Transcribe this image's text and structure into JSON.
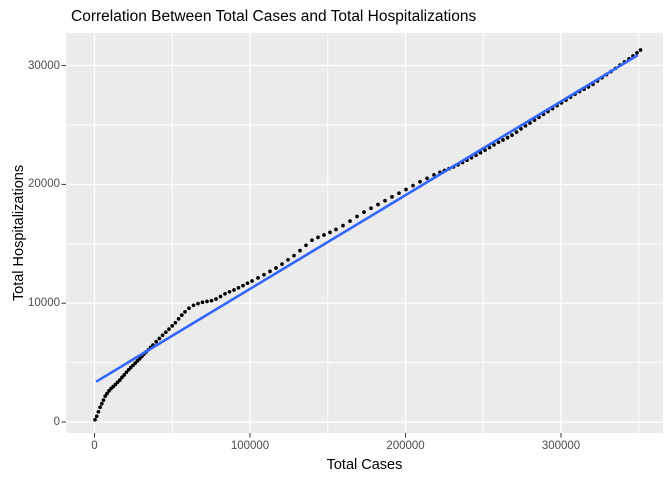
{
  "chart_data": {
    "type": "scatter",
    "title": "Correlation Between Total Cases and Total Hospitalizations",
    "xlabel": "Total Cases",
    "ylabel": "Total Hospitalizations",
    "grid": true,
    "legend_position": "none",
    "x_axis": {
      "ticks": [
        0,
        100000,
        200000,
        300000
      ],
      "minor_ticks": [
        50000,
        150000,
        250000,
        350000
      ],
      "range": [
        -18000,
        365500
      ]
    },
    "y_axis": {
      "ticks": [
        0,
        10000,
        20000,
        30000
      ],
      "minor_ticks": [
        5000,
        15000,
        25000
      ],
      "range": [
        -950,
        32750
      ]
    },
    "trend": {
      "type": "linear",
      "color": "#3366FF",
      "start": [
        1000,
        3390
      ],
      "end": [
        349500,
        30890
      ]
    },
    "colors": {
      "panel": "#EBEBEB",
      "grid_major": "#FFFFFF",
      "grid_minor": "#FFFFFF",
      "point": "#000000",
      "axis_text": "#4D4D4D",
      "tick_mark": "#333333",
      "title_text": "#000000"
    },
    "points": [
      [
        300,
        190
      ],
      [
        1400,
        480
      ],
      [
        2500,
        860
      ],
      [
        3590,
        1240
      ],
      [
        4680,
        1540
      ],
      [
        5780,
        1840
      ],
      [
        6870,
        2180
      ],
      [
        8030,
        2390
      ],
      [
        9310,
        2620
      ],
      [
        10600,
        2810
      ],
      [
        12020,
        2980
      ],
      [
        13430,
        3160
      ],
      [
        14850,
        3340
      ],
      [
        16260,
        3530
      ],
      [
        17680,
        3750
      ],
      [
        19090,
        3960
      ],
      [
        20510,
        4180
      ],
      [
        21920,
        4390
      ],
      [
        23340,
        4590
      ],
      [
        24750,
        4770
      ],
      [
        26170,
        4960
      ],
      [
        27580,
        5140
      ],
      [
        29000,
        5310
      ],
      [
        30410,
        5510
      ],
      [
        31830,
        5720
      ],
      [
        33240,
        5900
      ],
      [
        34660,
        6080
      ],
      [
        36070,
        6270
      ],
      [
        37610,
        6470
      ],
      [
        39670,
        6760
      ],
      [
        41730,
        7030
      ],
      [
        43790,
        7310
      ],
      [
        45850,
        7560
      ],
      [
        47900,
        7820
      ],
      [
        49960,
        8090
      ],
      [
        52020,
        8350
      ],
      [
        54080,
        8680
      ],
      [
        56140,
        9000
      ],
      [
        58190,
        9280
      ],
      [
        60770,
        9580
      ],
      [
        63660,
        9820
      ],
      [
        66550,
        9970
      ],
      [
        69450,
        10080
      ],
      [
        72340,
        10150
      ],
      [
        75240,
        10210
      ],
      [
        78130,
        10350
      ],
      [
        81020,
        10560
      ],
      [
        83920,
        10790
      ],
      [
        86810,
        10960
      ],
      [
        89710,
        11110
      ],
      [
        92600,
        11300
      ],
      [
        95490,
        11480
      ],
      [
        98390,
        11680
      ],
      [
        101280,
        11870
      ],
      [
        105140,
        12130
      ],
      [
        109000,
        12400
      ],
      [
        112860,
        12680
      ],
      [
        116720,
        12960
      ],
      [
        120570,
        13290
      ],
      [
        124430,
        13650
      ],
      [
        128290,
        14010
      ],
      [
        132150,
        14430
      ],
      [
        136010,
        14870
      ],
      [
        139870,
        15300
      ],
      [
        143720,
        15540
      ],
      [
        147580,
        15740
      ],
      [
        151440,
        15960
      ],
      [
        155300,
        16200
      ],
      [
        159800,
        16530
      ],
      [
        164310,
        16910
      ],
      [
        168810,
        17300
      ],
      [
        173320,
        17670
      ],
      [
        177820,
        18000
      ],
      [
        182320,
        18310
      ],
      [
        186820,
        18630
      ],
      [
        191320,
        18950
      ],
      [
        195820,
        19260
      ],
      [
        200330,
        19570
      ],
      [
        204830,
        19900
      ],
      [
        209330,
        20220
      ],
      [
        213830,
        20510
      ],
      [
        218330,
        20800
      ],
      [
        222190,
        21010
      ],
      [
        225090,
        21170
      ],
      [
        227980,
        21320
      ],
      [
        230870,
        21470
      ],
      [
        233770,
        21650
      ],
      [
        236660,
        21840
      ],
      [
        239560,
        22040
      ],
      [
        242450,
        22250
      ],
      [
        245340,
        22460
      ],
      [
        248240,
        22670
      ],
      [
        251130,
        22890
      ],
      [
        254030,
        23110
      ],
      [
        256920,
        23330
      ],
      [
        259810,
        23550
      ],
      [
        262710,
        23740
      ],
      [
        265600,
        23940
      ],
      [
        268500,
        24150
      ],
      [
        271390,
        24400
      ],
      [
        274280,
        24670
      ],
      [
        277180,
        24930
      ],
      [
        280070,
        25170
      ],
      [
        282970,
        25410
      ],
      [
        285860,
        25650
      ],
      [
        288750,
        25900
      ],
      [
        291650,
        26140
      ],
      [
        294540,
        26380
      ],
      [
        297440,
        26630
      ],
      [
        300330,
        26860
      ],
      [
        303220,
        27100
      ],
      [
        306120,
        27350
      ],
      [
        309010,
        27580
      ],
      [
        311910,
        27820
      ],
      [
        314800,
        28010
      ],
      [
        317690,
        28210
      ],
      [
        320590,
        28430
      ],
      [
        323480,
        28700
      ],
      [
        326380,
        28980
      ],
      [
        329270,
        29240
      ],
      [
        332160,
        29500
      ],
      [
        335060,
        29770
      ],
      [
        337950,
        30040
      ],
      [
        340850,
        30300
      ],
      [
        343740,
        30560
      ],
      [
        346310,
        30810
      ],
      [
        348890,
        31070
      ],
      [
        351140,
        31310
      ]
    ]
  }
}
